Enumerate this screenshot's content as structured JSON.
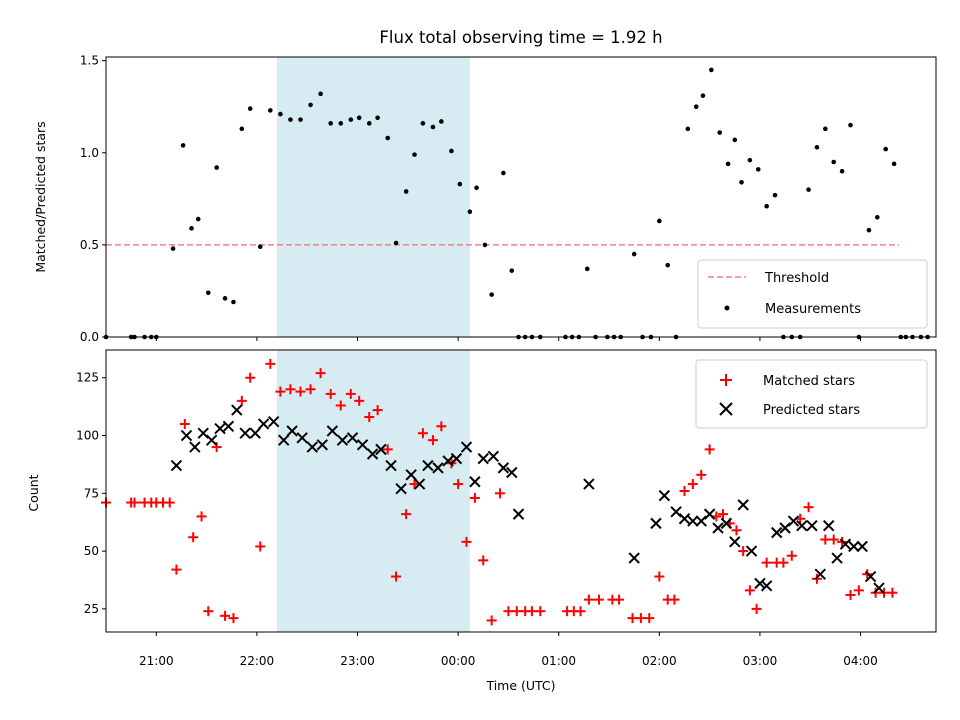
{
  "chart_data": [
    {
      "type": "scatter",
      "title": "Flux total observing time = 1.92 h",
      "xlabel": "",
      "ylabel": "Matched/Predicted stars",
      "xlim": [
        "20:30",
        "04:45"
      ],
      "ylim": [
        0,
        1.52
      ],
      "yticks": [
        "0.0",
        "0.5",
        "1.0",
        "1.5"
      ],
      "shaded_region": [
        "22:12",
        "00:07"
      ],
      "threshold": {
        "name": "Threshold",
        "value": 0.5,
        "x_range": [
          "20:30",
          "04:23"
        ],
        "color": "#f08080"
      },
      "series": [
        {
          "name": "Measurements",
          "color": "#000000",
          "points": [
            [
              "20:30",
              0
            ],
            [
              "20:45",
              0
            ],
            [
              "20:47",
              0
            ],
            [
              "20:53",
              0
            ],
            [
              "20:57",
              0
            ],
            [
              "21:00",
              0
            ],
            [
              "21:10",
              0.48
            ],
            [
              "21:16",
              1.04
            ],
            [
              "21:21",
              0.59
            ],
            [
              "21:25",
              0.64
            ],
            [
              "21:31",
              0.24
            ],
            [
              "21:36",
              0.92
            ],
            [
              "21:41",
              0.21
            ],
            [
              "21:46",
              0.19
            ],
            [
              "21:51",
              1.13
            ],
            [
              "21:56",
              1.24
            ],
            [
              "22:02",
              0.49
            ],
            [
              "22:08",
              1.23
            ],
            [
              "22:14",
              1.21
            ],
            [
              "22:20",
              1.18
            ],
            [
              "22:26",
              1.18
            ],
            [
              "22:32",
              1.26
            ],
            [
              "22:38",
              1.32
            ],
            [
              "22:44",
              1.16
            ],
            [
              "22:50",
              1.16
            ],
            [
              "22:56",
              1.18
            ],
            [
              "23:01",
              1.19
            ],
            [
              "23:07",
              1.16
            ],
            [
              "23:12",
              1.19
            ],
            [
              "23:18",
              1.08
            ],
            [
              "23:23",
              0.51
            ],
            [
              "23:29",
              0.79
            ],
            [
              "23:34",
              0.99
            ],
            [
              "23:39",
              1.16
            ],
            [
              "23:45",
              1.14
            ],
            [
              "23:50",
              1.17
            ],
            [
              "23:56",
              1.01
            ],
            [
              "00:01",
              0.83
            ],
            [
              "00:07",
              0.68
            ],
            [
              "00:11",
              0.81
            ],
            [
              "00:16",
              0.5
            ],
            [
              "00:20",
              0.23
            ],
            [
              "00:27",
              0.89
            ],
            [
              "00:32",
              0.36
            ],
            [
              "00:36",
              0
            ],
            [
              "00:40",
              0
            ],
            [
              "00:44",
              0
            ],
            [
              "00:49",
              0
            ],
            [
              "01:04",
              0
            ],
            [
              "01:08",
              0
            ],
            [
              "01:12",
              0
            ],
            [
              "01:17",
              0.37
            ],
            [
              "01:22",
              0
            ],
            [
              "01:29",
              0
            ],
            [
              "01:33",
              0
            ],
            [
              "01:37",
              0
            ],
            [
              "01:45",
              0.45
            ],
            [
              "01:50",
              0
            ],
            [
              "01:55",
              0
            ],
            [
              "02:00",
              0.63
            ],
            [
              "02:05",
              0.39
            ],
            [
              "02:10",
              0
            ],
            [
              "02:17",
              1.13
            ],
            [
              "02:22",
              1.25
            ],
            [
              "02:26",
              1.31
            ],
            [
              "02:31",
              1.45
            ],
            [
              "02:36",
              1.11
            ],
            [
              "02:41",
              0.94
            ],
            [
              "02:45",
              1.07
            ],
            [
              "02:49",
              0.84
            ],
            [
              "02:54",
              0.96
            ],
            [
              "02:59",
              0.91
            ],
            [
              "03:04",
              0.71
            ],
            [
              "03:09",
              0.77
            ],
            [
              "03:14",
              0
            ],
            [
              "03:19",
              0
            ],
            [
              "03:24",
              0
            ],
            [
              "03:29",
              0.8
            ],
            [
              "03:34",
              1.03
            ],
            [
              "03:39",
              1.13
            ],
            [
              "03:44",
              0.95
            ],
            [
              "03:49",
              0.9
            ],
            [
              "03:54",
              1.15
            ],
            [
              "03:59",
              0
            ],
            [
              "04:05",
              0.58
            ],
            [
              "04:10",
              0.65
            ],
            [
              "04:15",
              1.02
            ],
            [
              "04:20",
              0.94
            ],
            [
              "04:24",
              0
            ],
            [
              "04:27",
              0
            ],
            [
              "04:31",
              0
            ],
            [
              "04:36",
              0
            ],
            [
              "04:40",
              0
            ]
          ]
        }
      ],
      "legend": {
        "position": "lower right",
        "entries": [
          "Threshold",
          "Measurements"
        ]
      }
    },
    {
      "type": "scatter",
      "title": "",
      "xlabel": "Time (UTC)",
      "ylabel": "Count",
      "xlim": [
        "20:30",
        "04:45"
      ],
      "ylim": [
        15,
        137
      ],
      "xticks": [
        "21:00",
        "22:00",
        "23:00",
        "00:00",
        "01:00",
        "02:00",
        "03:00",
        "04:00"
      ],
      "yticks": [
        "25",
        "50",
        "75",
        "100",
        "125"
      ],
      "shaded_region": [
        "22:12",
        "00:07"
      ],
      "series": [
        {
          "name": "Matched stars",
          "marker": "plus",
          "color": "#ff0000",
          "points": [
            [
              "20:30",
              71
            ],
            [
              "20:45",
              71
            ],
            [
              "20:47",
              71
            ],
            [
              "20:53",
              71
            ],
            [
              "20:57",
              71
            ],
            [
              "21:00",
              71
            ],
            [
              "21:04",
              71
            ],
            [
              "21:08",
              71
            ],
            [
              "21:12",
              42
            ],
            [
              "21:17",
              105
            ],
            [
              "21:22",
              56
            ],
            [
              "21:27",
              65
            ],
            [
              "21:31",
              24
            ],
            [
              "21:36",
              95
            ],
            [
              "21:41",
              22
            ],
            [
              "21:46",
              21
            ],
            [
              "21:51",
              115
            ],
            [
              "21:56",
              125
            ],
            [
              "22:02",
              52
            ],
            [
              "22:08",
              131
            ],
            [
              "22:14",
              119
            ],
            [
              "22:20",
              120
            ],
            [
              "22:26",
              119
            ],
            [
              "22:32",
              120
            ],
            [
              "22:38",
              127
            ],
            [
              "22:44",
              118
            ],
            [
              "22:50",
              113
            ],
            [
              "22:56",
              118
            ],
            [
              "23:01",
              115
            ],
            [
              "23:07",
              108
            ],
            [
              "23:12",
              111
            ],
            [
              "23:18",
              94
            ],
            [
              "23:23",
              39
            ],
            [
              "23:29",
              66
            ],
            [
              "23:34",
              79
            ],
            [
              "23:39",
              101
            ],
            [
              "23:45",
              98
            ],
            [
              "23:50",
              104
            ],
            [
              "23:56",
              88
            ],
            [
              "00:00",
              79
            ],
            [
              "00:05",
              54
            ],
            [
              "00:10",
              73
            ],
            [
              "00:15",
              46
            ],
            [
              "00:20",
              20
            ],
            [
              "00:25",
              75
            ],
            [
              "00:30",
              24
            ],
            [
              "00:35",
              24
            ],
            [
              "00:40",
              24
            ],
            [
              "00:44",
              24
            ],
            [
              "00:49",
              24
            ],
            [
              "01:05",
              24
            ],
            [
              "01:09",
              24
            ],
            [
              "01:13",
              24
            ],
            [
              "01:18",
              29
            ],
            [
              "01:24",
              29
            ],
            [
              "01:32",
              29
            ],
            [
              "01:36",
              29
            ],
            [
              "01:44",
              21
            ],
            [
              "01:49",
              21
            ],
            [
              "01:54",
              21
            ],
            [
              "02:00",
              39
            ],
            [
              "02:05",
              29
            ],
            [
              "02:09",
              29
            ],
            [
              "02:15",
              76
            ],
            [
              "02:20",
              79
            ],
            [
              "02:25",
              83
            ],
            [
              "02:30",
              94
            ],
            [
              "02:34",
              65
            ],
            [
              "02:38",
              66
            ],
            [
              "02:42",
              62
            ],
            [
              "02:46",
              59
            ],
            [
              "02:50",
              50
            ],
            [
              "02:54",
              33
            ],
            [
              "02:58",
              25
            ],
            [
              "03:04",
              45
            ],
            [
              "03:10",
              45
            ],
            [
              "03:14",
              45
            ],
            [
              "03:19",
              48
            ],
            [
              "03:24",
              64
            ],
            [
              "03:29",
              69
            ],
            [
              "03:34",
              38
            ],
            [
              "03:39",
              55
            ],
            [
              "03:44",
              55
            ],
            [
              "03:49",
              54
            ],
            [
              "03:54",
              31
            ],
            [
              "03:59",
              33
            ],
            [
              "04:04",
              40
            ],
            [
              "04:09",
              32
            ],
            [
              "04:14",
              32
            ],
            [
              "04:19",
              32
            ]
          ]
        },
        {
          "name": "Predicted stars",
          "marker": "x",
          "color": "#000000",
          "points": [
            [
              "21:12",
              87
            ],
            [
              "21:18",
              100
            ],
            [
              "21:23",
              95
            ],
            [
              "21:28",
              101
            ],
            [
              "21:33",
              98
            ],
            [
              "21:38",
              103
            ],
            [
              "21:43",
              104
            ],
            [
              "21:48",
              111
            ],
            [
              "21:53",
              101
            ],
            [
              "21:59",
              101
            ],
            [
              "22:04",
              105
            ],
            [
              "22:10",
              106
            ],
            [
              "22:16",
              98
            ],
            [
              "22:21",
              102
            ],
            [
              "22:27",
              99
            ],
            [
              "22:33",
              95
            ],
            [
              "22:39",
              96
            ],
            [
              "22:45",
              102
            ],
            [
              "22:51",
              98
            ],
            [
              "22:57",
              99
            ],
            [
              "23:03",
              96
            ],
            [
              "23:09",
              92
            ],
            [
              "23:14",
              94
            ],
            [
              "23:20",
              87
            ],
            [
              "23:26",
              77
            ],
            [
              "23:32",
              83
            ],
            [
              "23:37",
              79
            ],
            [
              "23:42",
              87
            ],
            [
              "23:48",
              86
            ],
            [
              "23:54",
              89
            ],
            [
              "23:59",
              90
            ],
            [
              "00:05",
              95
            ],
            [
              "00:10",
              80
            ],
            [
              "00:15",
              90
            ],
            [
              "00:21",
              91
            ],
            [
              "00:27",
              86
            ],
            [
              "00:32",
              84
            ],
            [
              "00:36",
              66
            ],
            [
              "01:18",
              79
            ],
            [
              "01:45",
              47
            ],
            [
              "01:58",
              62
            ],
            [
              "02:03",
              74
            ],
            [
              "02:10",
              67
            ],
            [
              "02:15",
              64
            ],
            [
              "02:20",
              63
            ],
            [
              "02:25",
              63
            ],
            [
              "02:30",
              66
            ],
            [
              "02:35",
              60
            ],
            [
              "02:40",
              62
            ],
            [
              "02:45",
              54
            ],
            [
              "02:50",
              70
            ],
            [
              "02:55",
              50
            ],
            [
              "03:00",
              36
            ],
            [
              "03:04",
              35
            ],
            [
              "03:10",
              58
            ],
            [
              "03:15",
              60
            ],
            [
              "03:20",
              63
            ],
            [
              "03:25",
              61
            ],
            [
              "03:31",
              61
            ],
            [
              "03:36",
              40
            ],
            [
              "03:41",
              61
            ],
            [
              "03:46",
              47
            ],
            [
              "03:51",
              53
            ],
            [
              "03:56",
              52
            ],
            [
              "04:01",
              52
            ],
            [
              "04:06",
              39
            ],
            [
              "04:11",
              34
            ]
          ]
        }
      ],
      "legend": {
        "position": "upper right",
        "entries": [
          "Matched stars",
          "Predicted stars"
        ]
      }
    }
  ],
  "colors": {
    "shade": "#add8e6",
    "threshold": "#f08080",
    "matched": "#ff0000",
    "predicted": "#000000",
    "measurements": "#000000"
  }
}
